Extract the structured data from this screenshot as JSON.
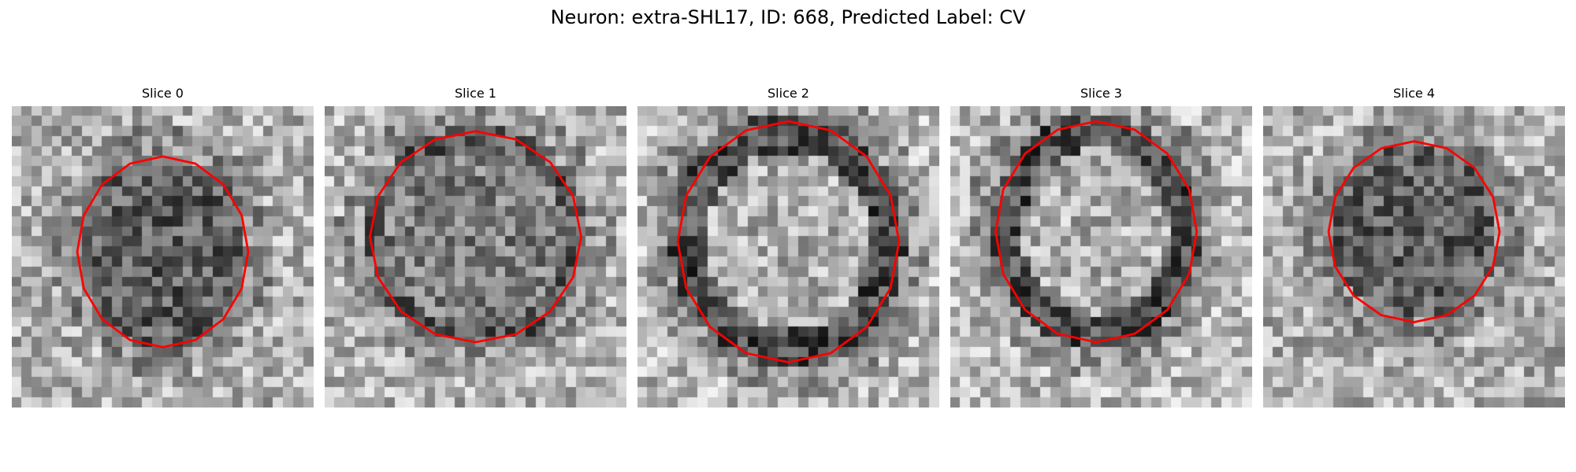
{
  "figure": {
    "title": "Neuron: extra-SHL17, ID: 668, Predicted Label: CV",
    "contour_color": "#ff0000",
    "colormap": "gray",
    "panels": [
      {
        "title": "Slice 0",
        "center": [
          15.0,
          14.5
        ],
        "radius": [
          8.5,
          9.5
        ],
        "interior": "dark"
      },
      {
        "title": "Slice 1",
        "center": [
          15.0,
          13.0
        ],
        "radius": [
          10.5,
          10.5
        ],
        "interior": "mid"
      },
      {
        "title": "Slice 2",
        "center": [
          15.0,
          13.5
        ],
        "radius": [
          11.0,
          12.0
        ],
        "interior": "light-with-dark-rim"
      },
      {
        "title": "Slice 3",
        "center": [
          14.5,
          12.5
        ],
        "radius": [
          10.0,
          11.0
        ],
        "interior": "light-with-dark-rim"
      },
      {
        "title": "Slice 4",
        "center": [
          15.0,
          12.5
        ],
        "radius": [
          8.5,
          9.0
        ],
        "interior": "dark"
      }
    ]
  }
}
